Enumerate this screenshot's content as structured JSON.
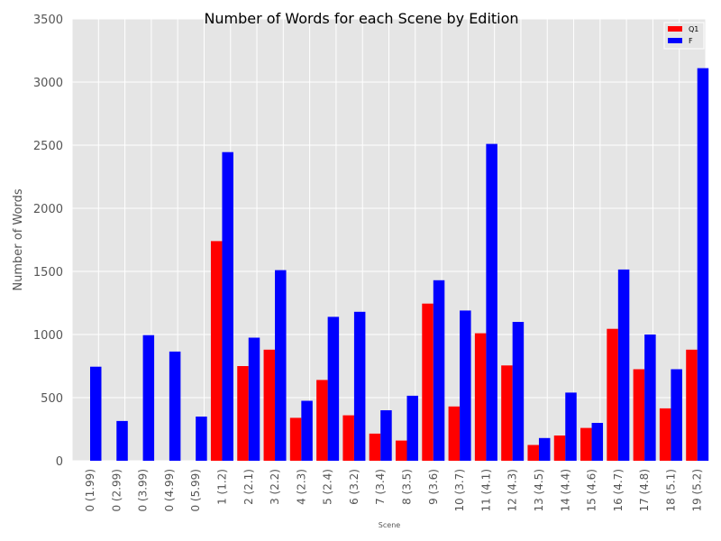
{
  "chart_data": {
    "type": "bar",
    "title": "Number of Words for each Scene by Edition",
    "xlabel": "Scene",
    "ylabel": "Number of Words",
    "ylim": [
      0,
      3500
    ],
    "yticks": [
      0,
      500,
      1000,
      1500,
      2000,
      2500,
      3000,
      3500
    ],
    "grid": true,
    "legend_position": "top-right",
    "categories": [
      "0 (1.99)",
      "0 (2.99)",
      "0 (3.99)",
      "0 (4.99)",
      "0 (5.99)",
      "1 (1.2)",
      "2 (2.1)",
      "3 (2.2)",
      "4 (2.3)",
      "5 (2.4)",
      "6 (3.2)",
      "7 (3.4)",
      "8 (3.5)",
      "9 (3.6)",
      "10 (3.7)",
      "11 (4.1)",
      "12 (4.3)",
      "13 (4.5)",
      "14 (4.4)",
      "15 (4.6)",
      "16 (4.7)",
      "17 (4.8)",
      "18 (5.1)",
      "19 (5.2)"
    ],
    "series": [
      {
        "name": "Q1",
        "color": "#ff0000",
        "values": [
          0,
          0,
          0,
          0,
          0,
          1740,
          750,
          880,
          340,
          640,
          360,
          215,
          160,
          1245,
          430,
          1010,
          755,
          125,
          200,
          260,
          1045,
          725,
          415,
          880
        ]
      },
      {
        "name": "F",
        "color": "#0000ff",
        "values": [
          745,
          315,
          995,
          865,
          350,
          2445,
          975,
          1510,
          475,
          1140,
          1180,
          400,
          515,
          1430,
          1190,
          2510,
          1100,
          180,
          540,
          300,
          1515,
          1000,
          725,
          3110
        ]
      }
    ]
  }
}
